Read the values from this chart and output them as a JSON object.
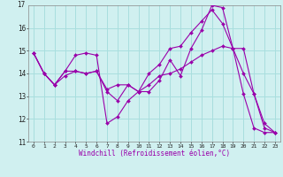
{
  "xlabel": "Windchill (Refroidissement éolien,°C)",
  "xlim": [
    -0.5,
    23.5
  ],
  "ylim": [
    11,
    17
  ],
  "yticks": [
    11,
    12,
    13,
    14,
    15,
    16
  ],
  "xticks": [
    0,
    1,
    2,
    3,
    4,
    5,
    6,
    7,
    8,
    9,
    10,
    11,
    12,
    13,
    14,
    15,
    16,
    17,
    18,
    19,
    20,
    21,
    22,
    23
  ],
  "bg_color": "#d0f0f0",
  "grid_color": "#a8dede",
  "line_color": "#9900aa",
  "lines": [
    {
      "x": [
        0,
        1,
        2,
        3,
        4,
        5,
        6,
        7,
        8,
        9,
        10,
        11,
        12,
        13,
        14,
        15,
        16,
        17,
        18,
        19,
        20,
        21,
        22,
        23
      ],
      "y": [
        14.9,
        14.0,
        13.5,
        14.1,
        14.8,
        14.9,
        14.8,
        11.8,
        12.1,
        12.8,
        13.2,
        13.2,
        13.7,
        14.6,
        13.9,
        15.1,
        15.9,
        17.0,
        16.9,
        15.1,
        13.1,
        11.6,
        11.4,
        11.4
      ]
    },
    {
      "x": [
        0,
        1,
        2,
        3,
        4,
        5,
        6,
        7,
        8,
        9,
        10,
        11,
        12,
        13,
        14,
        15,
        16,
        17,
        18,
        19,
        20,
        21,
        22,
        23
      ],
      "y": [
        14.9,
        14.0,
        13.5,
        14.1,
        14.1,
        14.0,
        14.1,
        13.2,
        12.8,
        13.5,
        13.2,
        14.0,
        14.4,
        15.1,
        15.2,
        15.8,
        16.3,
        16.8,
        16.2,
        15.1,
        15.1,
        13.1,
        11.6,
        11.4
      ]
    },
    {
      "x": [
        0,
        1,
        2,
        3,
        4,
        5,
        6,
        7,
        8,
        9,
        10,
        11,
        12,
        13,
        14,
        15,
        16,
        17,
        18,
        19,
        20,
        21,
        22,
        23
      ],
      "y": [
        14.9,
        14.0,
        13.5,
        13.9,
        14.1,
        14.0,
        14.1,
        13.3,
        13.5,
        13.5,
        13.2,
        13.5,
        13.9,
        14.0,
        14.2,
        14.5,
        14.8,
        15.0,
        15.2,
        15.1,
        14.0,
        13.1,
        11.8,
        11.4
      ]
    }
  ]
}
